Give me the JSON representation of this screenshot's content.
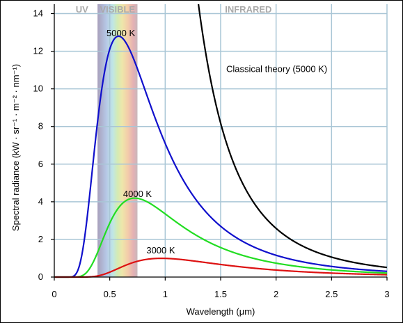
{
  "chart_data": {
    "type": "line",
    "xlabel": "Wavelength (μm)",
    "ylabel": "Spectral radiance (kW · sr⁻¹ · m⁻² · nm⁻¹)",
    "xlim": [
      0,
      3
    ],
    "ylim": [
      0,
      14.5
    ],
    "x_ticks": [
      0,
      0.5,
      1,
      1.5,
      2,
      2.5,
      3
    ],
    "x_tick_labels": [
      "0",
      "0.5",
      "1",
      "1.5",
      "2",
      "2.5",
      "3"
    ],
    "y_ticks": [
      0,
      2,
      4,
      6,
      8,
      10,
      12,
      14
    ],
    "y_tick_labels": [
      "0",
      "2",
      "4",
      "6",
      "8",
      "10",
      "12",
      "14"
    ],
    "grid": true,
    "regions": [
      {
        "label": "UV",
        "x_center": 0.25
      },
      {
        "label": "VISIBLE",
        "x_range": [
          0.39,
          0.75
        ],
        "x_center": 0.57
      },
      {
        "label": "INFRARED",
        "x_center": 1.75
      }
    ],
    "series": [
      {
        "name": "5000 K",
        "temperature_k": 5000,
        "color": "#1010cc",
        "peak": [
          0.58,
          12.7
        ],
        "label_at": [
          0.6,
          12.8
        ]
      },
      {
        "name": "4000 K",
        "temperature_k": 4000,
        "color": "#22dd22",
        "peak": [
          0.72,
          4.2
        ],
        "label_at": [
          0.75,
          4.25
        ]
      },
      {
        "name": "3000 K",
        "temperature_k": 3000,
        "color": "#dd1111",
        "peak": [
          0.97,
          1.0
        ],
        "label_at": [
          0.96,
          1.25
        ]
      },
      {
        "name": "Classical theory (5000 K)",
        "temperature_k": 5000,
        "model": "rayleigh-jeans",
        "color": "#000000",
        "label_at": [
          1.55,
          10.9
        ]
      }
    ]
  }
}
